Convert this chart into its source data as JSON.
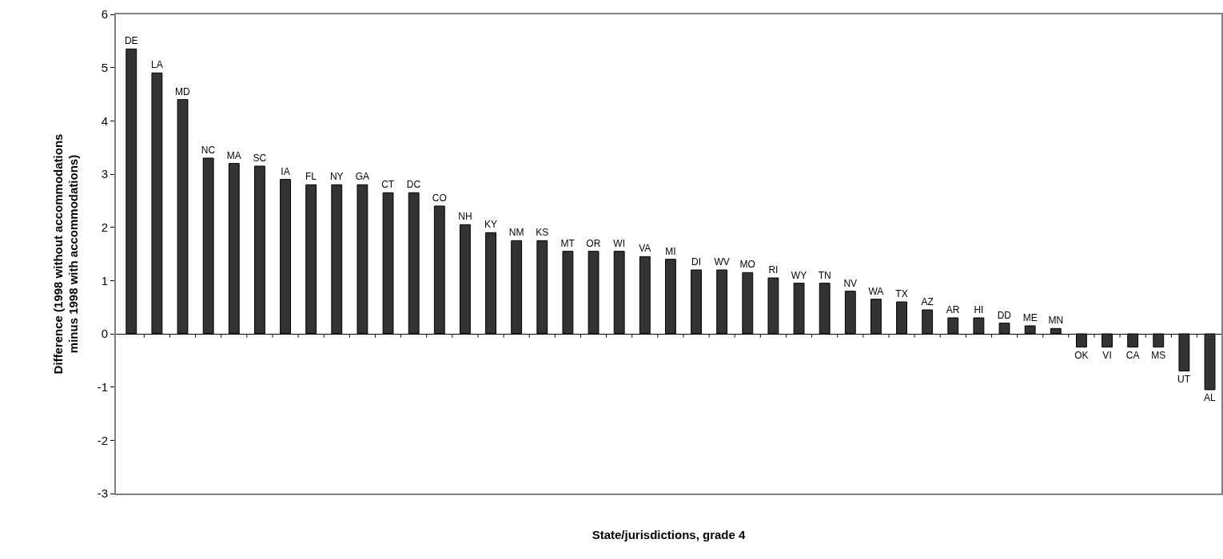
{
  "chart_data": {
    "type": "bar",
    "xlabel": "State/jurisdictions, grade 4",
    "ylabel": "Difference (1998 without accommodations\nminus 1998 with accommodations)",
    "categories": [
      "DE",
      "LA",
      "MD",
      "NC",
      "MA",
      "SC",
      "IA",
      "FL",
      "NY",
      "GA",
      "CT",
      "DC",
      "CO",
      "NH",
      "KY",
      "NM",
      "KS",
      "MT",
      "OR",
      "WI",
      "VA",
      "MI",
      "DI",
      "WV",
      "MO",
      "RI",
      "WY",
      "TN",
      "NV",
      "WA",
      "TX",
      "AZ",
      "AR",
      "HI",
      "DD",
      "ME",
      "MN",
      "OK",
      "VI",
      "CA",
      "MS",
      "UT",
      "AL"
    ],
    "values": [
      5.35,
      4.9,
      4.4,
      3.3,
      3.2,
      3.15,
      2.9,
      2.8,
      2.8,
      2.8,
      2.65,
      2.65,
      2.4,
      2.05,
      1.9,
      1.75,
      1.75,
      1.55,
      1.55,
      1.55,
      1.45,
      1.4,
      1.2,
      1.2,
      1.15,
      1.05,
      0.95,
      0.95,
      0.8,
      0.65,
      0.6,
      0.45,
      0.3,
      0.3,
      0.2,
      0.15,
      0.1,
      -0.25,
      -0.25,
      -0.25,
      -0.25,
      -0.7,
      -1.05
    ],
    "color": "#333333",
    "ylim": [
      -3,
      6
    ],
    "yticks": [
      -3,
      -2,
      -1,
      0,
      1,
      2,
      3,
      4,
      5,
      6
    ],
    "grid": false,
    "legend": false,
    "tick_labels": "y"
  }
}
